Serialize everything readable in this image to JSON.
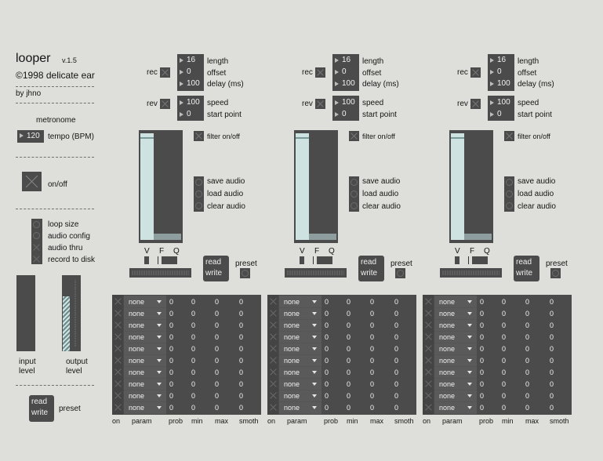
{
  "sidebar": {
    "title": "looper",
    "version": "v.1.5",
    "copyright": "©1998 delicate ear",
    "author": "by jhno",
    "metronome_label": "metronome",
    "tempo_value": "120",
    "tempo_label": "tempo (BPM)",
    "onoff_label": "on/off",
    "options": [
      "loop size",
      "audio config",
      "audio thru",
      "record to disk"
    ],
    "input_level_label": "input\nlevel",
    "output_level_label": "output\nlevel",
    "read_label": "read",
    "write_label": "write",
    "preset_label": "preset"
  },
  "channel": {
    "rec_label": "rec",
    "rev_label": "rev",
    "length_value": "16",
    "length_label": "length",
    "offset_value": "0",
    "offset_label": "offset",
    "delay_value": "100",
    "delay_label": "delay (ms)",
    "speed_value": "100",
    "speed_label": "speed",
    "start_value": "0",
    "start_label": "start point",
    "filter_label": "filter on/off",
    "save_label": "save audio",
    "load_label": "load audio",
    "clear_label": "clear audio",
    "v_label": "V",
    "f_label": "F",
    "q_label": "Q",
    "read_label": "read",
    "write_label": "write",
    "preset_label": "preset"
  },
  "table": {
    "headers": [
      "on",
      "param",
      "prob",
      "min",
      "max",
      "smoth"
    ],
    "param_value": "none",
    "row_values": [
      "0",
      "0",
      "0",
      "0"
    ],
    "row_count": 10
  }
}
